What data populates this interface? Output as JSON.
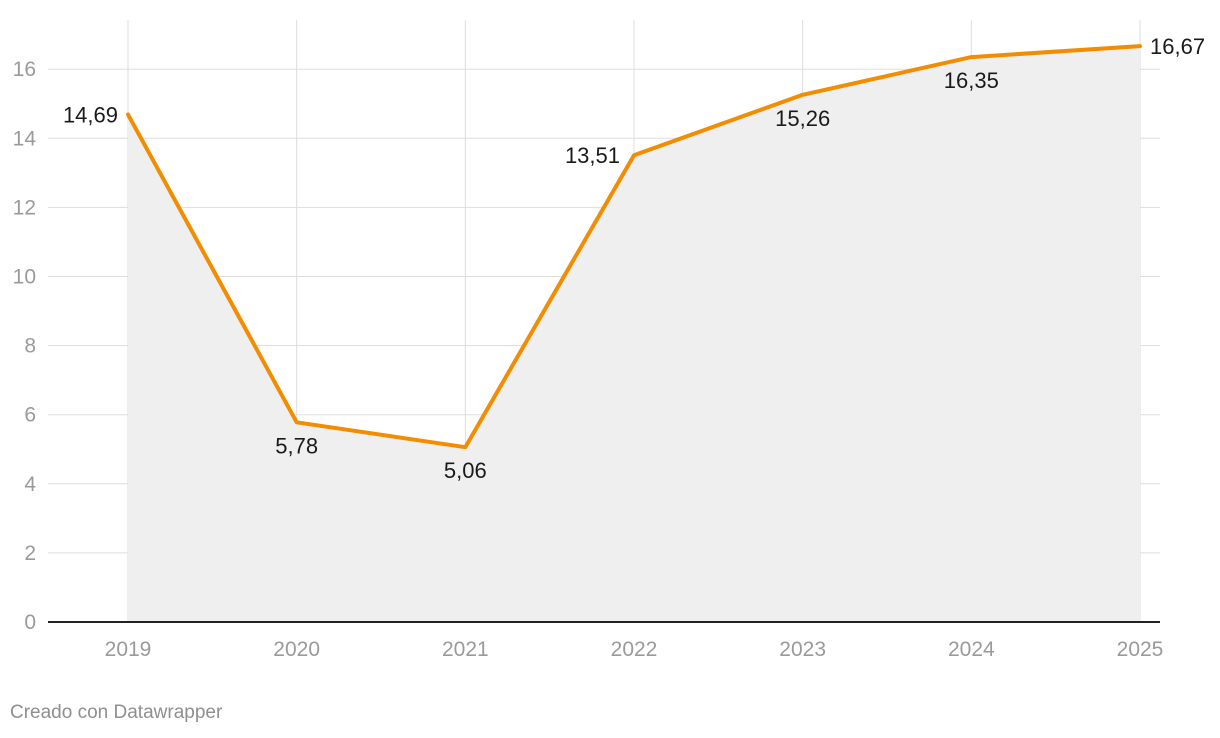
{
  "chart_data": {
    "type": "area",
    "x": [
      "2019",
      "2020",
      "2021",
      "2022",
      "2023",
      "2024",
      "2025"
    ],
    "series": [
      {
        "values": [
          14.69,
          5.78,
          5.06,
          13.51,
          15.26,
          16.35,
          16.67
        ],
        "value_labels": [
          "14,69",
          "5,78",
          "5,06",
          "13,51",
          "15,26",
          "16,35",
          "16,67"
        ]
      }
    ],
    "yticks": [
      0,
      2,
      4,
      6,
      8,
      10,
      12,
      14,
      16
    ],
    "ylim": [
      0,
      17.5
    ],
    "grid": true,
    "colors": {
      "line": "#f28c00",
      "area": "#efefef",
      "grid": "#dddddd",
      "baseline": "#222222"
    }
  },
  "footer": {
    "credit": "Creado con Datawrapper"
  }
}
